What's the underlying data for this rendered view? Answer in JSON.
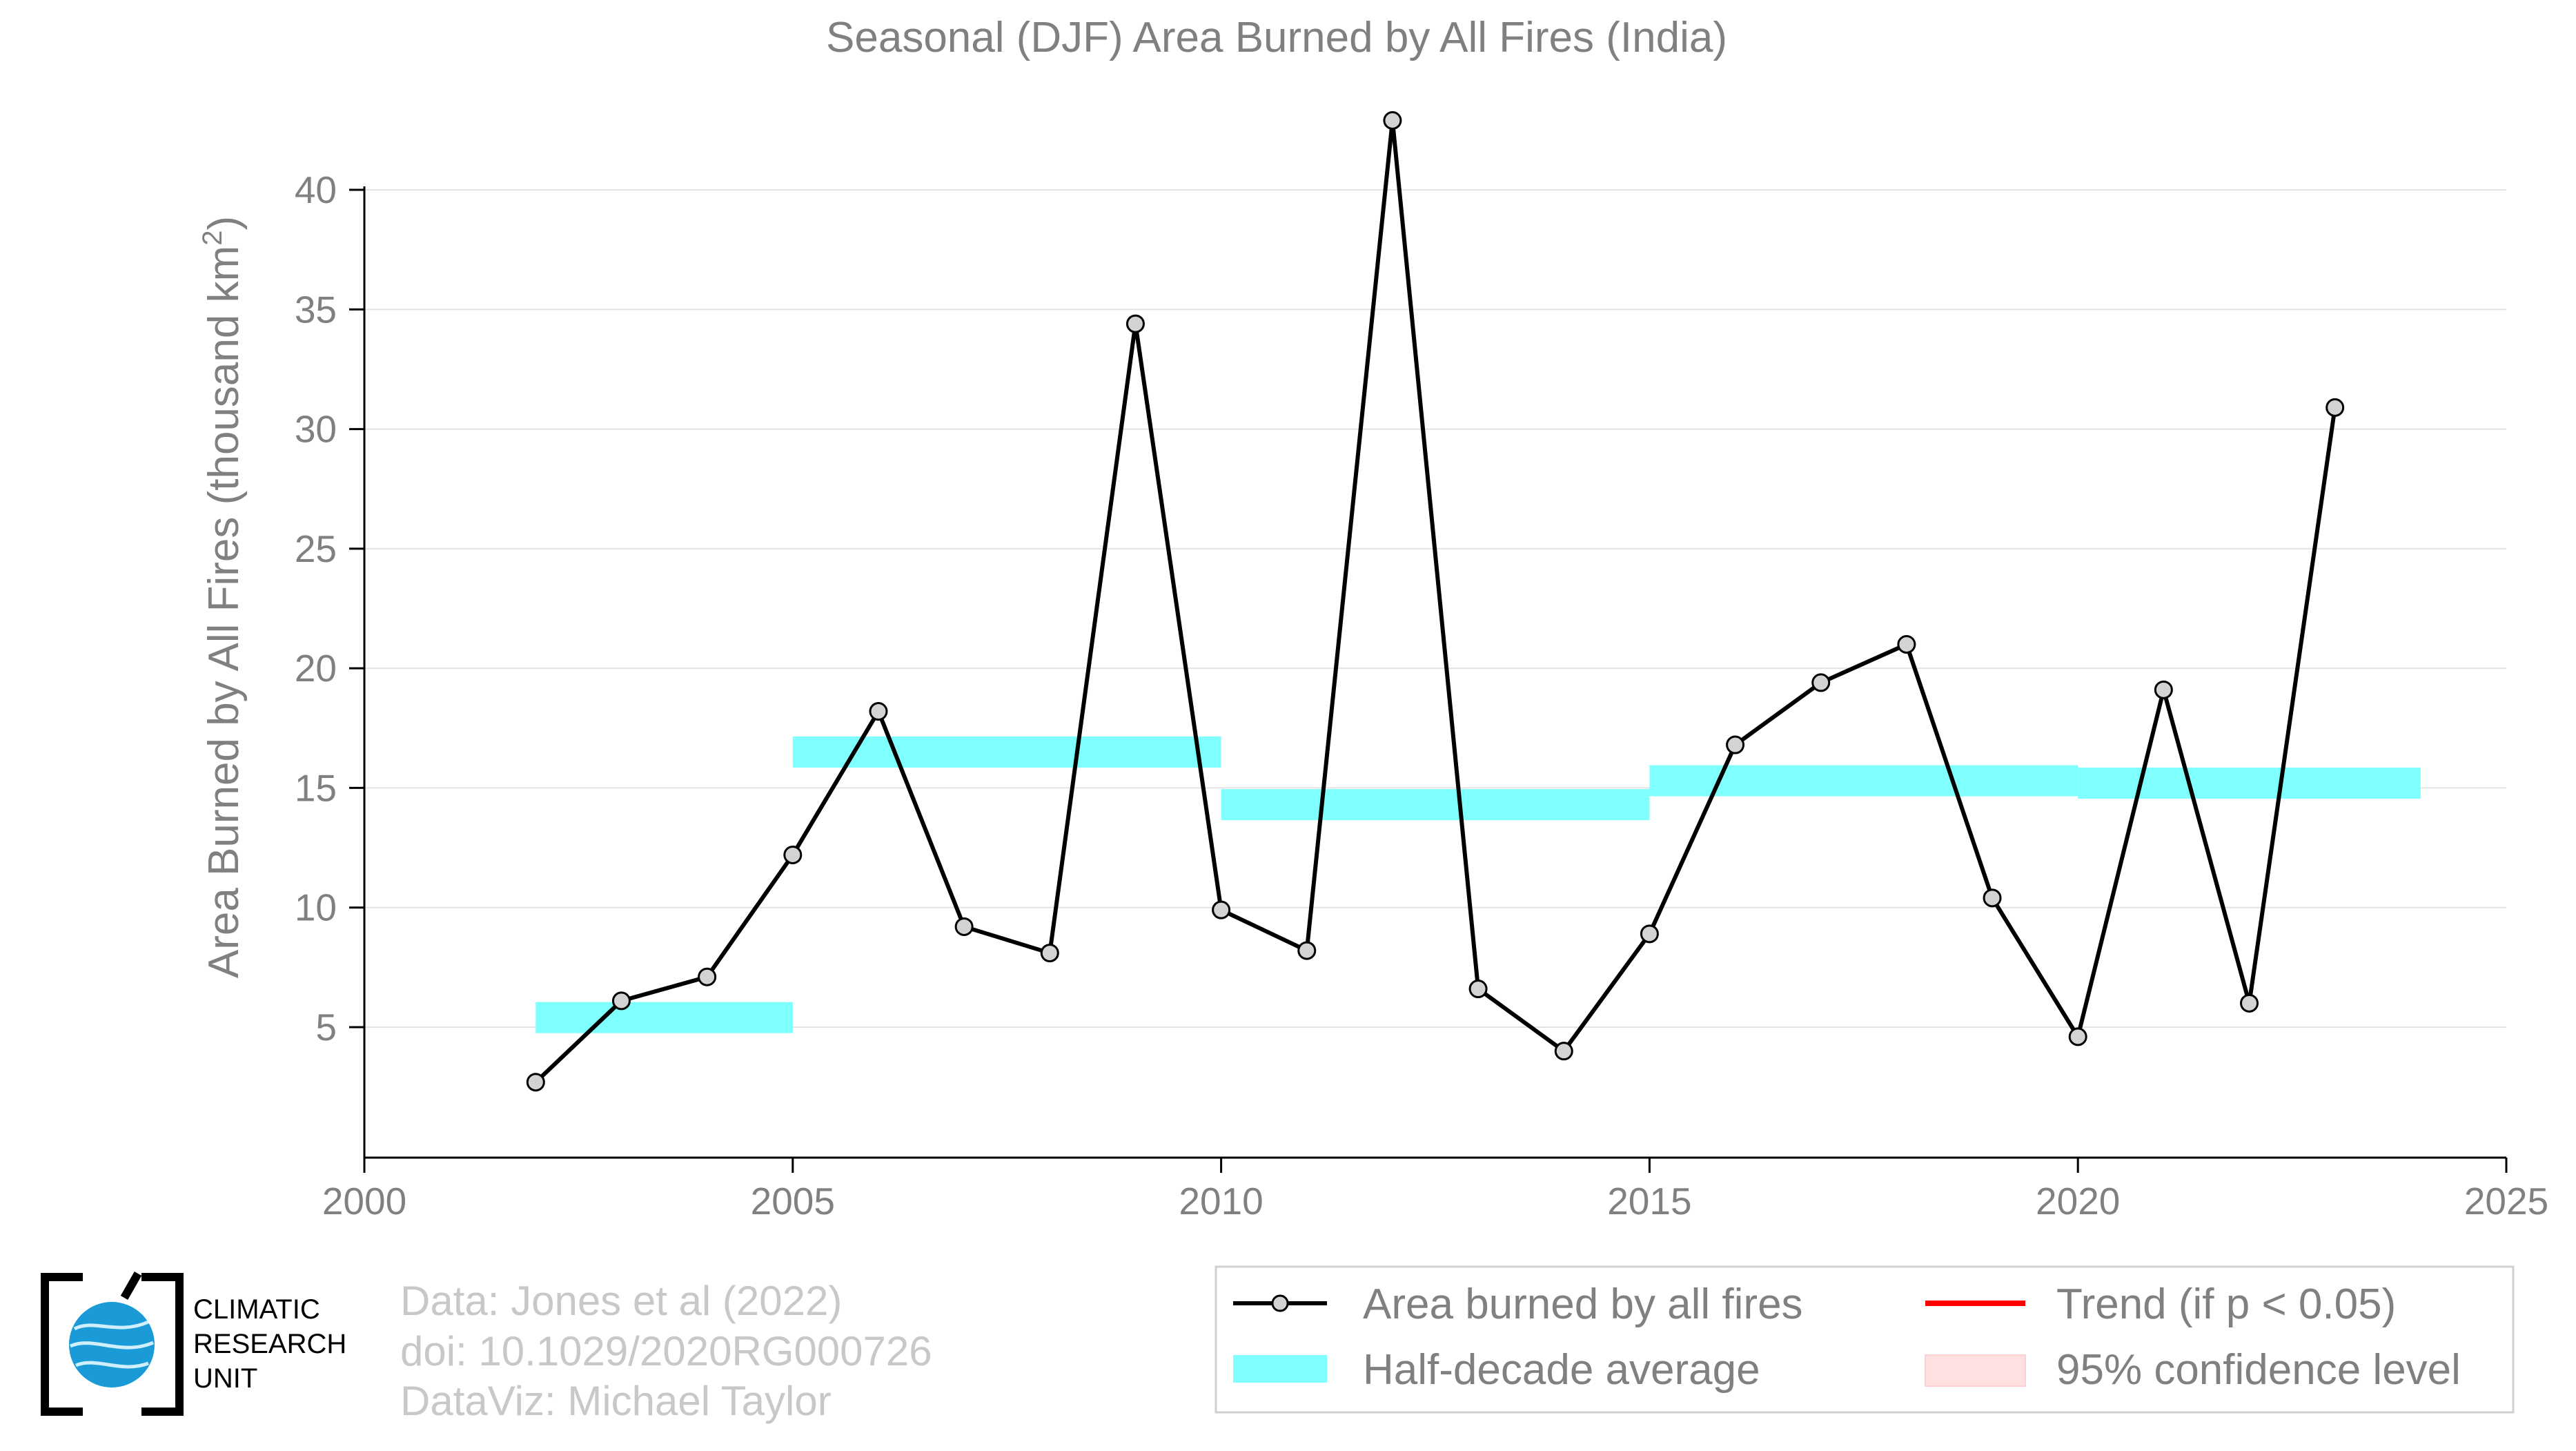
{
  "chart_data": {
    "type": "line",
    "title": "Seasonal (DJF) Area Burned by All Fires (India)",
    "ylabel_main": "Area Burned by All Fires (thousand km",
    "ylabel_sup": "2",
    "ylabel_end": ")",
    "xlim": [
      2000,
      2025
    ],
    "ylim": [
      0,
      44
    ],
    "x_ticks": [
      2000,
      2005,
      2010,
      2015,
      2020,
      2025
    ],
    "y_ticks": [
      5,
      10,
      15,
      20,
      25,
      30,
      35,
      40
    ],
    "grid": true,
    "series": [
      {
        "name": "Area burned by all fires",
        "color": "#000000",
        "marker_fill": "#d3d3d3",
        "x": [
          2002,
          2003,
          2004,
          2005,
          2006,
          2007,
          2008,
          2009,
          2010,
          2011,
          2012,
          2013,
          2014,
          2015,
          2016,
          2017,
          2018,
          2019,
          2020,
          2021,
          2022,
          2023
        ],
        "y": [
          2.7,
          6.1,
          7.1,
          12.2,
          18.2,
          9.2,
          8.1,
          34.4,
          9.9,
          8.2,
          42.9,
          6.6,
          4.0,
          8.9,
          16.8,
          19.4,
          21.0,
          10.4,
          4.6,
          19.1,
          6.0,
          30.9
        ]
      },
      {
        "name": "Half-decade average",
        "color": "#80ffff",
        "segments": [
          {
            "x": [
              2002,
              2005
            ],
            "y": 5.4
          },
          {
            "x": [
              2005,
              2010
            ],
            "y": 16.5
          },
          {
            "x": [
              2010,
              2015
            ],
            "y": 14.3
          },
          {
            "x": [
              2015,
              2020
            ],
            "y": 15.3
          },
          {
            "x": [
              2020,
              2024
            ],
            "y": 15.2
          }
        ]
      }
    ],
    "legend": {
      "position": "bottom-right",
      "items": [
        {
          "label": "Area burned by all fires",
          "type": "line-marker",
          "color": "#000000"
        },
        {
          "label": "Trend (if p < 0.05)",
          "type": "line",
          "color": "#ff0000"
        },
        {
          "label": "Half-decade average",
          "type": "band",
          "color": "#80ffff"
        },
        {
          "label": "95% confidence level",
          "type": "band",
          "color": "#ffe0e0"
        }
      ]
    }
  },
  "credits": {
    "line1": "Data: Jones et al (2022)",
    "line2": "doi: 10.1029/2020RG000726",
    "line3": "DataViz: Michael Taylor"
  },
  "logo": {
    "line1": "CLIMATIC",
    "line2": "RESEARCH",
    "line3": "UNIT",
    "globe_color": "#1a9ad6"
  }
}
